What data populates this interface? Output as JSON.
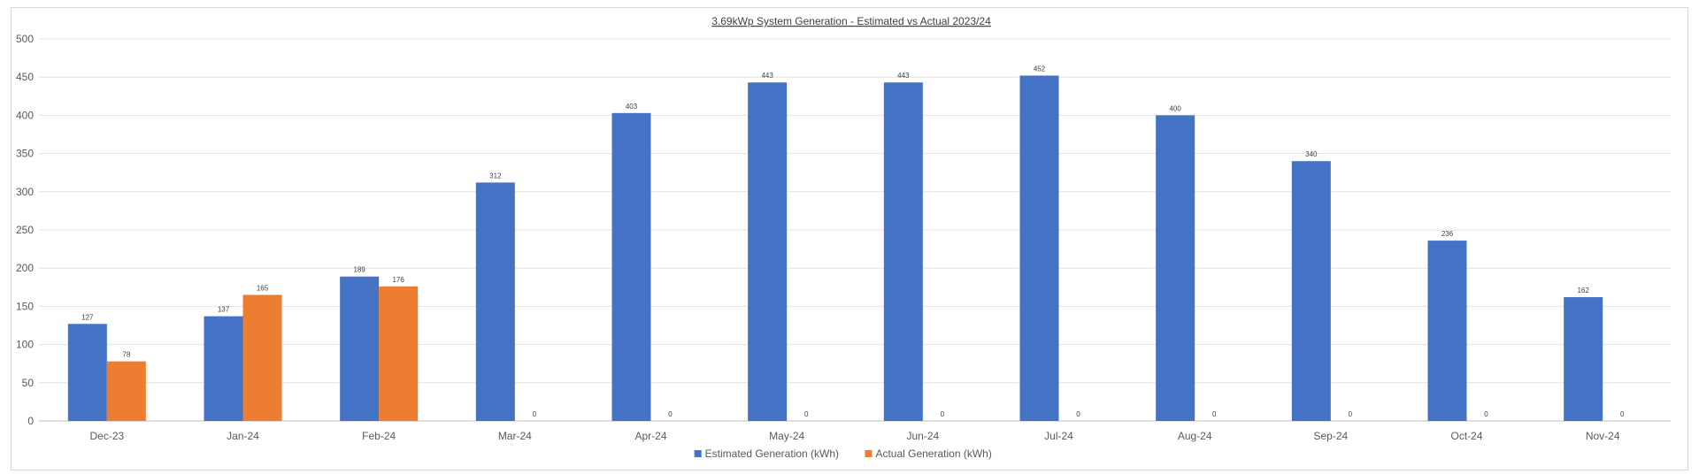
{
  "chart_data": {
    "type": "bar",
    "title": "3.69kWp System Generation - Estimated vs Actual 2023/24",
    "categories": [
      "Dec-23",
      "Jan-24",
      "Feb-24",
      "Mar-24",
      "Apr-24",
      "May-24",
      "Jun-24",
      "Jul-24",
      "Aug-24",
      "Sep-24",
      "Oct-24",
      "Nov-24"
    ],
    "series": [
      {
        "name": "Estimated Generation (kWh)",
        "color": "#4472C4",
        "values": [
          127,
          137,
          189,
          312,
          403,
          443,
          443,
          452,
          400,
          340,
          236,
          162
        ]
      },
      {
        "name": "Actual Generation (kWh)",
        "color": "#ED7D31",
        "values": [
          78,
          165,
          176,
          0,
          0,
          0,
          0,
          0,
          0,
          0,
          0,
          0
        ]
      }
    ],
    "ylim": [
      0,
      500
    ],
    "yticks": [
      0,
      50,
      100,
      150,
      200,
      250,
      300,
      350,
      400,
      450,
      500
    ],
    "grid": true,
    "legend": "bottom"
  }
}
